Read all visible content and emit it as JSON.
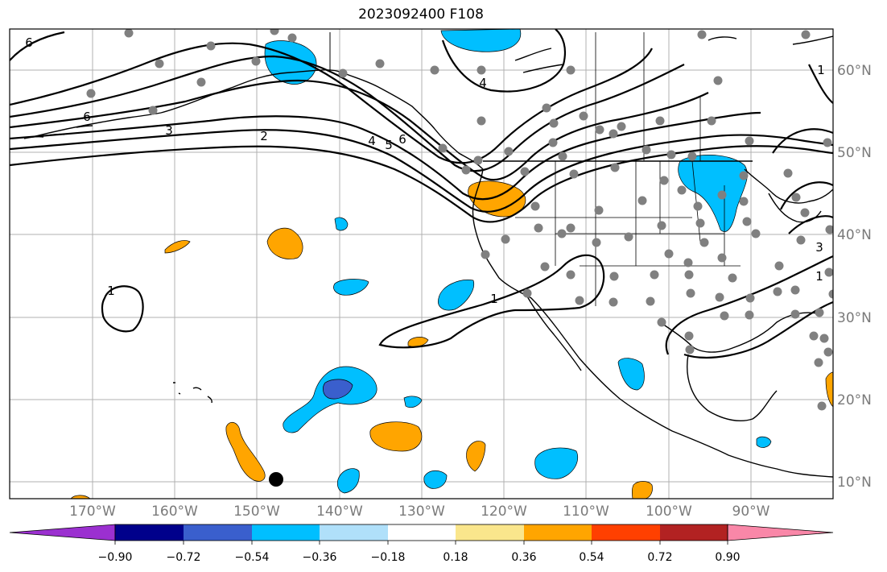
{
  "title": "2023092400 F108",
  "longitude_labels": [
    "170°W",
    "160°W",
    "150°W",
    "140°W",
    "130°W",
    "120°W",
    "110°W",
    "100°W",
    "90°W"
  ],
  "latitude_labels": [
    "10°N",
    "20°N",
    "30°N",
    "40°N",
    "50°N",
    "60°N"
  ],
  "colorbar": {
    "tick_labels": [
      "−0.90",
      "−0.72",
      "−0.54",
      "−0.36",
      "−0.18",
      "0.18",
      "0.36",
      "0.54",
      "0.72",
      "0.90"
    ],
    "colors": [
      "#9b30d0",
      "#00008b",
      "#3a5fcd",
      "#00bfff",
      "#b0e0fa",
      "#ffffff",
      "#fae68c",
      "#ffa500",
      "#ff4000",
      "#b22222",
      "#f987a8"
    ],
    "extend": "both"
  },
  "contour_labels": [
    "6",
    "6",
    "3",
    "2",
    "4",
    "5",
    "6",
    "4",
    "1",
    "1",
    "1",
    "3",
    "1"
  ],
  "colors": {
    "cool_shading": "#00bfff",
    "deep_cool_shading": "#3a5fcd",
    "warm_shading": "#ffa500",
    "station_dot": "#808080",
    "marker": "#000000"
  }
}
